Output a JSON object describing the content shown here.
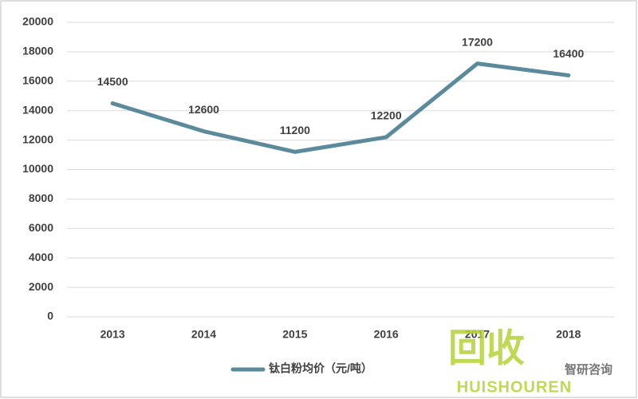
{
  "chart_data": {
    "type": "line",
    "categories": [
      "2013",
      "2014",
      "2015",
      "2016",
      "2017",
      "2018"
    ],
    "series": [
      {
        "name": "钛白粉均价（元/吨）",
        "color": "#5b8a9c",
        "values": [
          14500,
          12600,
          11200,
          12200,
          17200,
          16400
        ]
      }
    ],
    "ylim": [
      0,
      20000
    ],
    "yticks": [
      0,
      2000,
      4000,
      6000,
      8000,
      10000,
      12000,
      14000,
      16000,
      18000,
      20000
    ],
    "grid": true,
    "data_labels": true,
    "legend": "bottom"
  },
  "watermark": {
    "logo": "回收",
    "brand": "HUISHOUREN",
    "source": "智研咨询"
  }
}
